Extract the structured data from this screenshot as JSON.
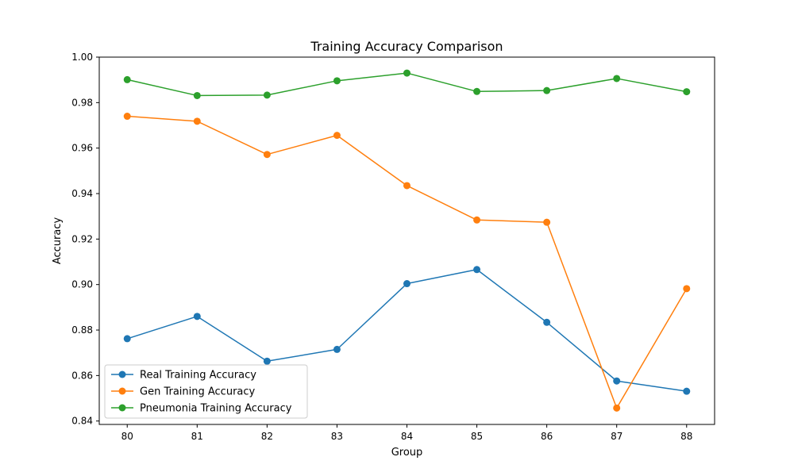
{
  "chart_data": {
    "type": "line",
    "title": "Training Accuracy Comparison",
    "xlabel": "Group",
    "ylabel": "Accuracy",
    "x": [
      80,
      81,
      82,
      83,
      84,
      85,
      86,
      87,
      88
    ],
    "x_ticks": [
      "80",
      "81",
      "82",
      "83",
      "84",
      "85",
      "86",
      "87",
      "88"
    ],
    "ylim": [
      0.8385,
      1.0
    ],
    "y_ticks": [
      0.84,
      0.86,
      0.88,
      0.9,
      0.92,
      0.94,
      0.96,
      0.98,
      1.0
    ],
    "y_tick_labels": [
      "0.84",
      "0.86",
      "0.88",
      "0.90",
      "0.92",
      "0.94",
      "0.96",
      "0.98",
      "1.00"
    ],
    "grid": false,
    "legend_position": "lower-left",
    "series": [
      {
        "name": "Real Training Accuracy",
        "color": "#1f77b4",
        "marker": "circle",
        "values": [
          0.8762,
          0.886,
          0.8663,
          0.8715,
          0.9004,
          0.9066,
          0.8834,
          0.8576,
          0.8531
        ]
      },
      {
        "name": "Gen Training Accuracy",
        "color": "#ff7f0e",
        "marker": "circle",
        "values": [
          0.974,
          0.9718,
          0.9572,
          0.9656,
          0.9435,
          0.9284,
          0.9274,
          0.8457,
          0.8982
        ]
      },
      {
        "name": "Pneumonia Training Accuracy",
        "color": "#2ca02c",
        "marker": "circle",
        "values": [
          0.9901,
          0.9831,
          0.9833,
          0.9896,
          0.993,
          0.9849,
          0.9853,
          0.9906,
          0.9848
        ]
      }
    ]
  }
}
